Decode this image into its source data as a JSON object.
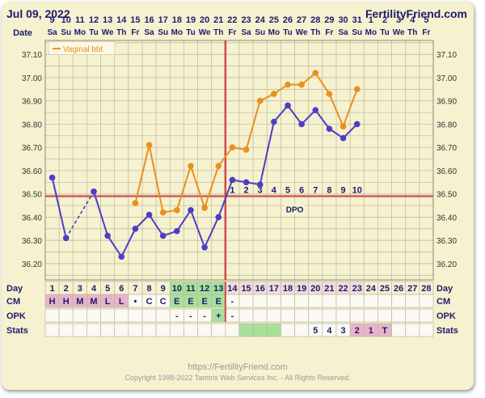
{
  "header": {
    "date": "Jul 09, 2022",
    "brand": "FertilityFriend.com"
  },
  "footer": {
    "url": "https://FertilityFriend.com",
    "copyright": "Copyright 1998-2022 Tamtris Web Services Inc. - All Rights Reserved."
  },
  "chart_data": {
    "type": "line",
    "row_labels": {
      "date": "Date",
      "day": "Day",
      "cm": "CM",
      "opk": "OPK",
      "stats": "Stats"
    },
    "dates": [
      "9",
      "10",
      "11",
      "12",
      "13",
      "14",
      "15",
      "16",
      "17",
      "18",
      "19",
      "20",
      "21",
      "22",
      "23",
      "24",
      "25",
      "26",
      "27",
      "28",
      "29",
      "30",
      "31",
      "1",
      "2",
      "3",
      "4",
      "5"
    ],
    "weekdays": [
      "Sa",
      "Su",
      "Mo",
      "Tu",
      "We",
      "Th",
      "Fr",
      "Sa",
      "Su",
      "Mo",
      "Tu",
      "We",
      "Th",
      "Fr",
      "Sa",
      "Su",
      "Mo",
      "Tu",
      "We",
      "Th",
      "Fr",
      "Sa",
      "Su",
      "Mo",
      "Tu",
      "We",
      "Th",
      "Fr"
    ],
    "cycle_days": [
      "1",
      "2",
      "3",
      "4",
      "5",
      "6",
      "7",
      "8",
      "9",
      "10",
      "11",
      "12",
      "13",
      "14",
      "15",
      "16",
      "17",
      "18",
      "19",
      "20",
      "21",
      "22",
      "23",
      "24",
      "25",
      "26",
      "27",
      "28"
    ],
    "y_ticks": [
      "37.10",
      "37.00",
      "36.90",
      "36.80",
      "36.70",
      "36.60",
      "36.50",
      "36.40",
      "36.30",
      "36.20"
    ],
    "ylim": [
      36.13,
      37.16
    ],
    "legend": "Vaginal bbt",
    "coverline": 36.49,
    "ovulation_day": 13,
    "coverline_label": "DPO",
    "dpo_labels": [
      "1",
      "2",
      "3",
      "4",
      "5",
      "6",
      "7",
      "8",
      "9",
      "10"
    ],
    "series": [
      {
        "name": "Vaginal bbt",
        "color": "#e8901e",
        "values": [
          null,
          null,
          null,
          null,
          null,
          null,
          36.46,
          36.71,
          36.42,
          36.43,
          36.62,
          36.44,
          36.62,
          36.7,
          36.69,
          36.9,
          36.93,
          36.97,
          36.97,
          37.02,
          36.93,
          36.79,
          36.95,
          null,
          null,
          null,
          null,
          null
        ]
      },
      {
        "color": "#4b3ec6",
        "values": [
          36.57,
          36.31,
          null,
          36.51,
          36.32,
          36.23,
          36.35,
          36.41,
          36.32,
          36.34,
          36.43,
          36.27,
          36.4,
          36.56,
          36.55,
          36.54,
          36.81,
          36.88,
          36.8,
          36.86,
          36.78,
          36.74,
          36.8,
          null,
          null,
          null,
          null,
          null
        ]
      }
    ],
    "dashed_segment": [
      2,
      4
    ],
    "cm": [
      "H",
      "H",
      "M",
      "M",
      "L",
      "L",
      "•",
      "C",
      "C",
      "E",
      "E",
      "E",
      "E",
      "-",
      "",
      "",
      "",
      "",
      "",
      "",
      "",
      "",
      "",
      "",
      "",
      "",
      "",
      ""
    ],
    "opk": [
      "",
      "",
      "",
      "",
      "",
      "",
      "",
      "",
      "",
      "-",
      "-",
      "-",
      "+",
      "-",
      "",
      "",
      "",
      "",
      "",
      "",
      "",
      "",
      "",
      "",
      "",
      "",
      "",
      ""
    ],
    "stats": [
      "",
      "",
      "",
      "",
      "",
      "",
      "",
      "",
      "",
      "",
      "",
      "",
      "",
      "",
      "",
      "",
      "",
      "",
      "",
      "5",
      "4",
      "3",
      "2",
      "1",
      "T",
      "",
      "",
      ""
    ],
    "colors": {
      "accent_vertical": "#d04a4a",
      "coverline": "#cf5a5a",
      "grid": "#b8b8a0",
      "fertile_green": "#a7e09a",
      "menses_pink": "#e8b4c8",
      "luteal_pink": "#f3dcdc",
      "text": "#1c1c6e"
    }
  }
}
